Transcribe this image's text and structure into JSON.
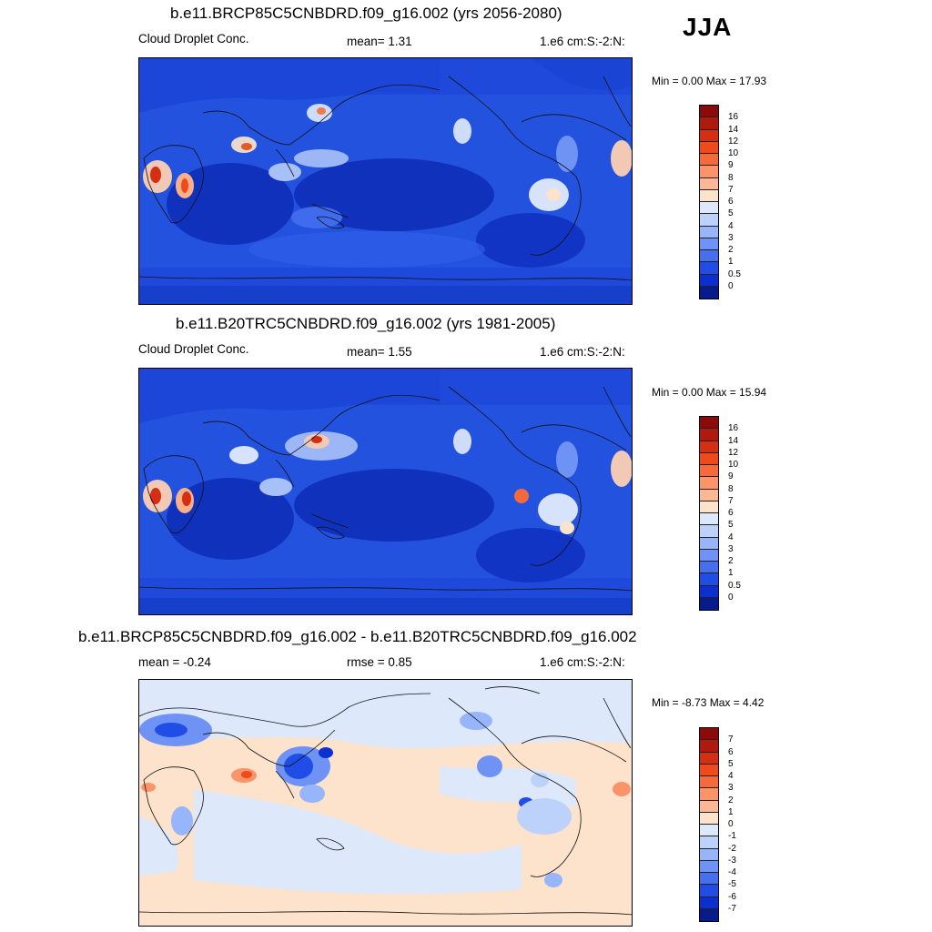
{
  "season": "JJA",
  "panels": [
    {
      "title": "b.e11.BRCP85C5CNBDRD.f09_g16.002 (yrs 2056-2080)",
      "left_label": "Cloud Droplet Conc.",
      "center_label": "mean=   1.31",
      "right_label": "1.e6 cm:S:-2:N:",
      "minmax": "Min =    0.00 Max =  17.93",
      "variant": "abs"
    },
    {
      "title": "b.e11.B20TRC5CNBDRD.f09_g16.002 (yrs 1981-2005)",
      "left_label": "Cloud Droplet Conc.",
      "center_label": "mean=   1.55",
      "right_label": "1.e6 cm:S:-2:N:",
      "minmax": "Min =    0.00 Max =  15.94",
      "variant": "abs"
    },
    {
      "title": "b.e11.BRCP85C5CNBDRD.f09_g16.002 - b.e11.B20TRC5CNBDRD.f09_g16.002",
      "left_label": "mean =  -0.24",
      "center_label": "rmse =   0.85",
      "right_label": "1.e6 cm:S:-2:N:",
      "minmax": "Min =  -8.73 Max =   4.42",
      "variant": "diff"
    }
  ],
  "colorbars": {
    "abs": {
      "labels": [
        "16",
        "14",
        "12",
        "10",
        "9",
        "8",
        "7",
        "6",
        "5",
        "4",
        "3",
        "2",
        "1",
        "0.5",
        "0"
      ],
      "colors": [
        "#8b0a0a",
        "#b01a0c",
        "#d52e12",
        "#ee4a1c",
        "#f8693a",
        "#fb9468",
        "#fcb794",
        "#fde2cc",
        "#dde9fb",
        "#bcd2fb",
        "#96b5fa",
        "#6e93f5",
        "#4470ef",
        "#1f4de6",
        "#0c2fd0",
        "#071c8c"
      ]
    },
    "diff": {
      "labels": [
        "7",
        "6",
        "5",
        "4",
        "3",
        "2",
        "1",
        "0",
        "-1",
        "-2",
        "-3",
        "-4",
        "-5",
        "-6",
        "-7"
      ],
      "colors": [
        "#8b0a0a",
        "#b01a0c",
        "#d52e12",
        "#ee4a1c",
        "#f8693a",
        "#fb9468",
        "#fcb794",
        "#fde2cc",
        "#dde9fb",
        "#bcd2fb",
        "#96b5fa",
        "#6e93f5",
        "#4470ef",
        "#1f4de6",
        "#0c2fd0",
        "#071c8c"
      ]
    }
  }
}
